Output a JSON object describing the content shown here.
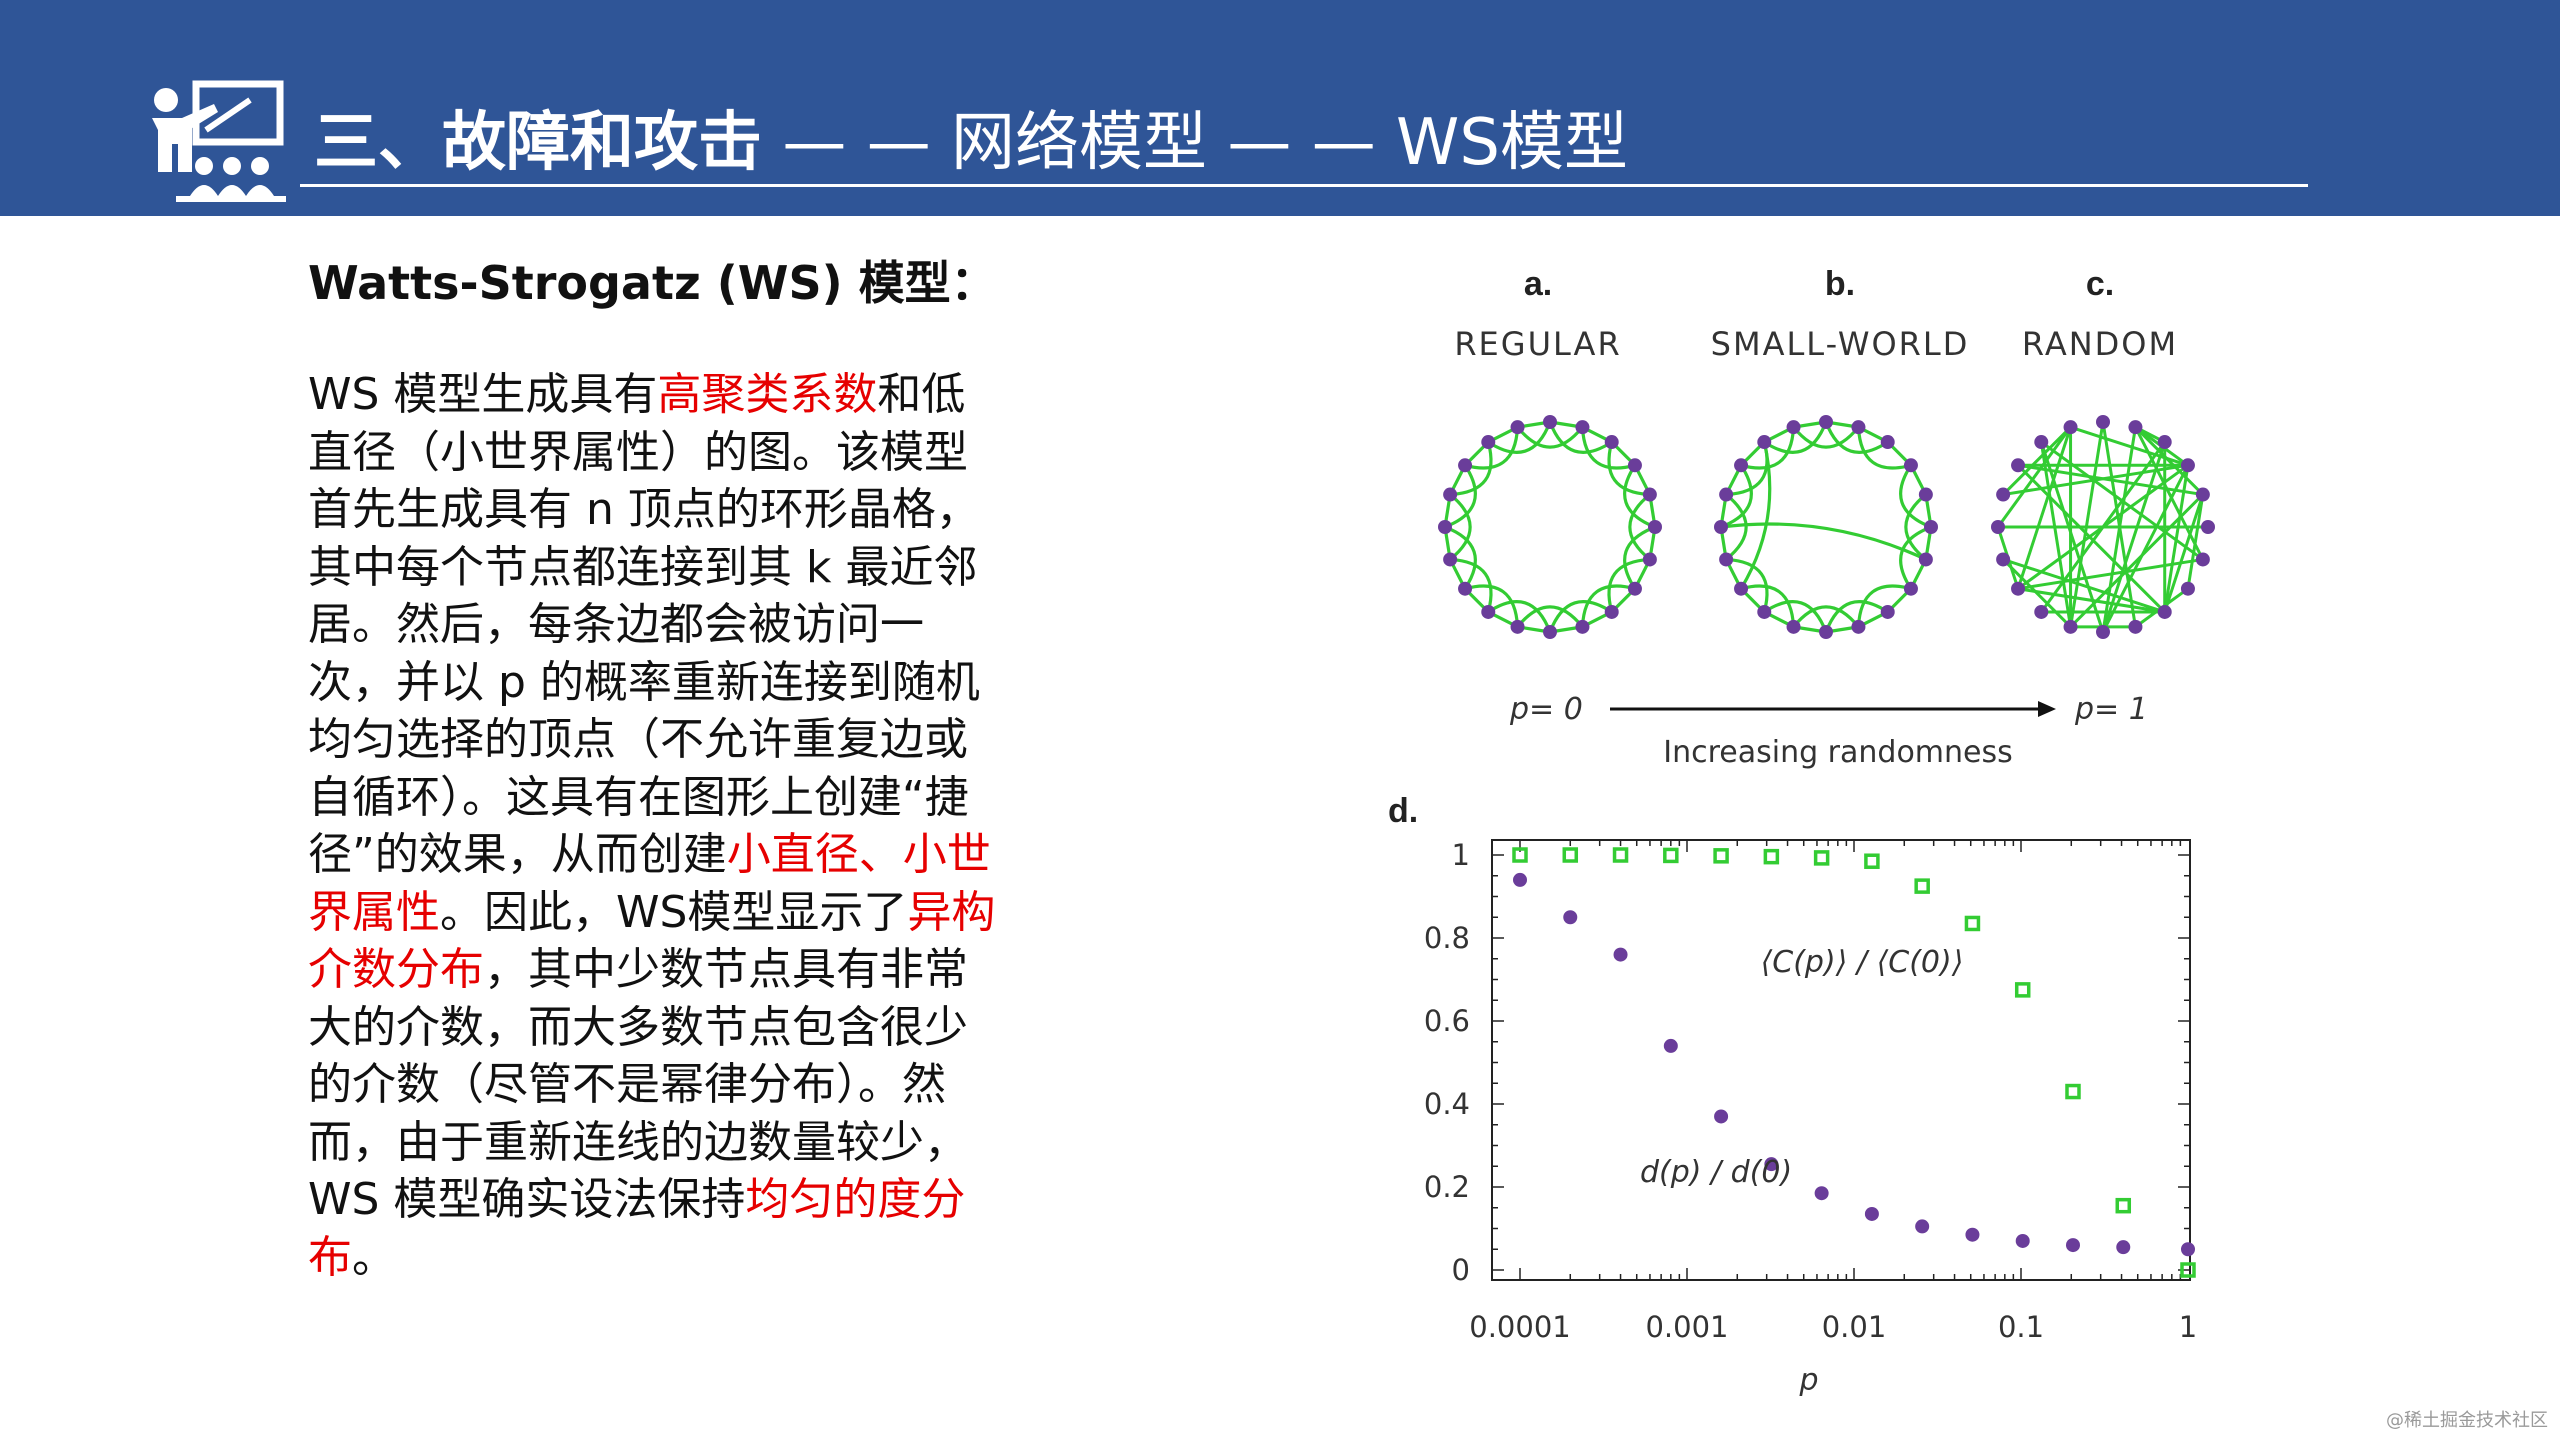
{
  "header": {
    "title_bold": "三、故障和攻击",
    "title_rest": " — — 网络模型 — — WS模型",
    "icon": "teacher-presentation-icon",
    "bg_color": "#2f5597"
  },
  "content": {
    "subtitle": "Watts-Strogatz (WS) 模型：",
    "paragraph": [
      {
        "text": "WS 模型生成具有",
        "highlight": false
      },
      {
        "text": "高聚类系数",
        "highlight": true
      },
      {
        "text": "和低直径（小世界属性）的图。该模型首先生成具有 n 顶点的环形晶格，其中每个节点都连接到其 k 最近邻居。然后，每条边都会被访问一次，并以 p 的概率重新连接到随机均匀选择的顶点（不允许重复边或自循环）。这具有在图形上创建“捷径”的效果，从而创建",
        "highlight": false
      },
      {
        "text": "小直径、小世界属性",
        "highlight": true
      },
      {
        "text": "。因此，WS模型显示了",
        "highlight": false
      },
      {
        "text": "异构介数分布",
        "highlight": true
      },
      {
        "text": "，其中少数节点具有非常大的介数，而大多数节点包含很少的介数（尽管不是幂律分布）。然而，由于重新连线的边数量较少，WS 模型确实设法保持",
        "highlight": false
      },
      {
        "text": "均匀的度分布",
        "highlight": true
      },
      {
        "text": "。",
        "highlight": false
      }
    ],
    "highlight_color": "#e60000"
  },
  "figure": {
    "panels": [
      {
        "letter": "a.",
        "name": "REGULAR"
      },
      {
        "letter": "b.",
        "name": "SMALL-WORLD"
      },
      {
        "letter": "c.",
        "name": "RANDOM"
      }
    ],
    "arrow": {
      "left_label": "p= 0",
      "right_label": "p= 1",
      "caption": "Increasing randomness"
    },
    "node_color": "#6a3d9a",
    "edge_color": "#33cc33"
  },
  "chart_data": {
    "type": "scatter",
    "panel_letter": "d.",
    "xlabel": "p",
    "x_scale": "log",
    "xlim": [
      0.0001,
      1
    ],
    "ylim": [
      0,
      1
    ],
    "x_ticks": [
      "0.0001",
      "0.001",
      "0.01",
      "0.1",
      "1"
    ],
    "y_ticks": [
      "0",
      "0.2",
      "0.4",
      "0.6",
      "0.8",
      "1"
    ],
    "series": [
      {
        "name": "⟨C(p)⟩ / ⟨C(0)⟩",
        "marker": "square",
        "color": "#33cc33",
        "x": [
          0.0001,
          0.0002,
          0.0004,
          0.0008,
          0.0016,
          0.0032,
          0.0064,
          0.0128,
          0.0256,
          0.0512,
          0.1024,
          0.2048,
          0.4096,
          1
        ],
        "y": [
          1.0,
          1.0,
          1.0,
          0.999,
          0.998,
          0.996,
          0.993,
          0.985,
          0.925,
          0.835,
          0.675,
          0.43,
          0.155,
          0.0
        ]
      },
      {
        "name": "d(p) / d(0)",
        "marker": "circle",
        "color": "#6a3d9a",
        "x": [
          0.0001,
          0.0002,
          0.0004,
          0.0008,
          0.0016,
          0.0032,
          0.0064,
          0.0128,
          0.0256,
          0.0512,
          0.1024,
          0.2048,
          0.4096,
          1
        ],
        "y": [
          0.94,
          0.85,
          0.76,
          0.54,
          0.37,
          0.255,
          0.185,
          0.135,
          0.105,
          0.085,
          0.07,
          0.06,
          0.055,
          0.05
        ]
      }
    ]
  },
  "watermark": "@稀土掘金技术社区"
}
